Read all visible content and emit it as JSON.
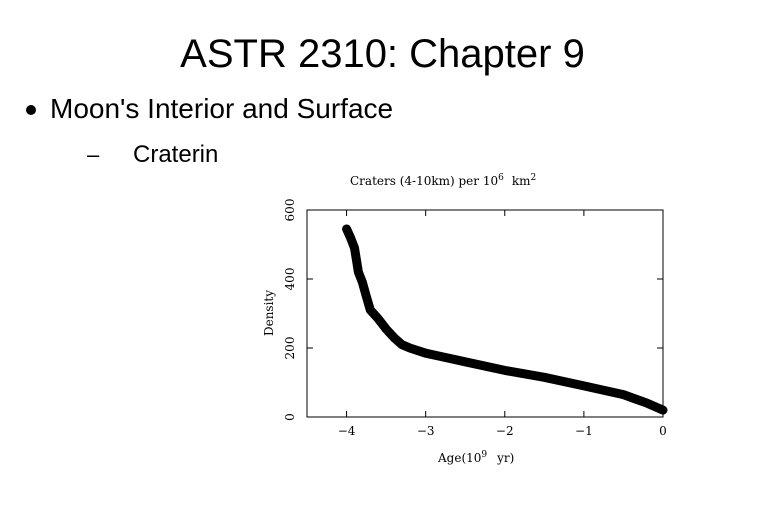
{
  "slide": {
    "title": "ASTR 2310: Chapter 9",
    "bullet": "Moon's Interior and Surface",
    "sub_bullet_marker": "–",
    "sub_bullet": "Craterin"
  },
  "chart_data": {
    "type": "line",
    "title": "Craters (4-10km) per 10",
    "title_sup": "6",
    "title_unit": "km",
    "title_unit_sup": "2",
    "xlabel": "Age(10",
    "xlabel_sup": "9",
    "xlabel_unit": "yr)",
    "ylabel": "Density",
    "xlim": [
      -4.5,
      0
    ],
    "ylim": [
      0,
      600
    ],
    "x_ticks": [
      -4,
      -3,
      -2,
      -1,
      0
    ],
    "x_tick_labels": [
      "−4",
      "−3",
      "−2",
      "−1",
      "0"
    ],
    "y_ticks": [
      0,
      200,
      400,
      600
    ],
    "y_tick_labels": [
      "0",
      "200",
      "400",
      "600"
    ],
    "line_color": "#000000",
    "series": [
      {
        "x": [
          -4.0,
          -3.95,
          -3.9,
          -3.85,
          -3.8,
          -3.75,
          -3.7,
          -3.6,
          -3.5,
          -3.4,
          -3.3,
          -3.2,
          -3.0,
          -2.8,
          -2.5,
          -2.0,
          -1.5,
          -1.0,
          -0.5,
          -0.2,
          0.0
        ],
        "y": [
          545,
          520,
          490,
          420,
          390,
          350,
          310,
          285,
          255,
          230,
          210,
          200,
          185,
          175,
          160,
          135,
          115,
          90,
          65,
          40,
          20
        ]
      }
    ]
  }
}
